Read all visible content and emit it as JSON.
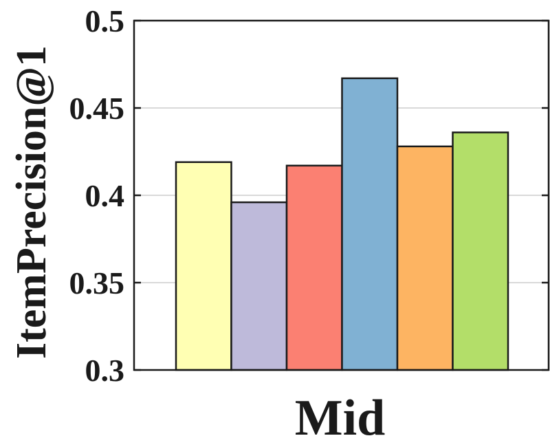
{
  "chart_data": {
    "type": "bar",
    "categories": [
      "Mid"
    ],
    "series": [
      {
        "values": [
          0.419
        ],
        "color": "#FFFFB3"
      },
      {
        "values": [
          0.396
        ],
        "color": "#BEBADA"
      },
      {
        "values": [
          0.417
        ],
        "color": "#FB8072"
      },
      {
        "values": [
          0.467
        ],
        "color": "#80B1D3"
      },
      {
        "values": [
          0.428
        ],
        "color": "#FDB462"
      },
      {
        "values": [
          0.436
        ],
        "color": "#B3DE69"
      }
    ],
    "title": "",
    "xlabel": "Mid",
    "ylabel": "ItemPrecision@1",
    "ylim": [
      0.3,
      0.5
    ],
    "yticks": [
      0.3,
      0.35,
      0.4,
      0.45,
      0.5
    ],
    "ytick_labels": [
      "0.3",
      "0.35",
      "0.4",
      "0.45",
      "0.5"
    ],
    "grid": "horizontal",
    "legend": "none"
  }
}
